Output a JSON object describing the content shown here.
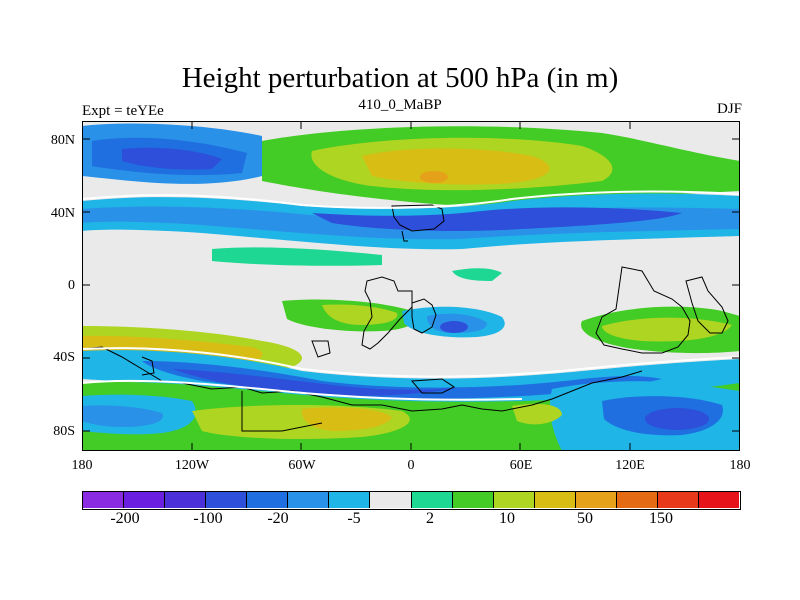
{
  "title": "Height perturbation at 500 hPa (in m)",
  "left_subtitle": "Expt = teYEe",
  "center_subtitle": "410_0_MaBP",
  "right_subtitle": "DJF",
  "lat_labels": [
    "80N",
    "40N",
    "0",
    "40S",
    "80S"
  ],
  "lon_labels": [
    "180",
    "120W",
    "60W",
    "0",
    "60E",
    "120E",
    "180"
  ],
  "colorbar": {
    "colors": [
      "#8a2be2",
      "#6a1ee0",
      "#4b2fd8",
      "#2d4fd9",
      "#1f6fe0",
      "#2a91e8",
      "#1fb5e6",
      "#eaeaea",
      "#1ed793",
      "#43cc25",
      "#aed521",
      "#d8bd14",
      "#e6a11b",
      "#e46a14",
      "#e8391b",
      "#e6131b"
    ],
    "labels": [
      "-200",
      "-100",
      "-20",
      "-5",
      "2",
      "10",
      "50",
      "150"
    ]
  }
}
